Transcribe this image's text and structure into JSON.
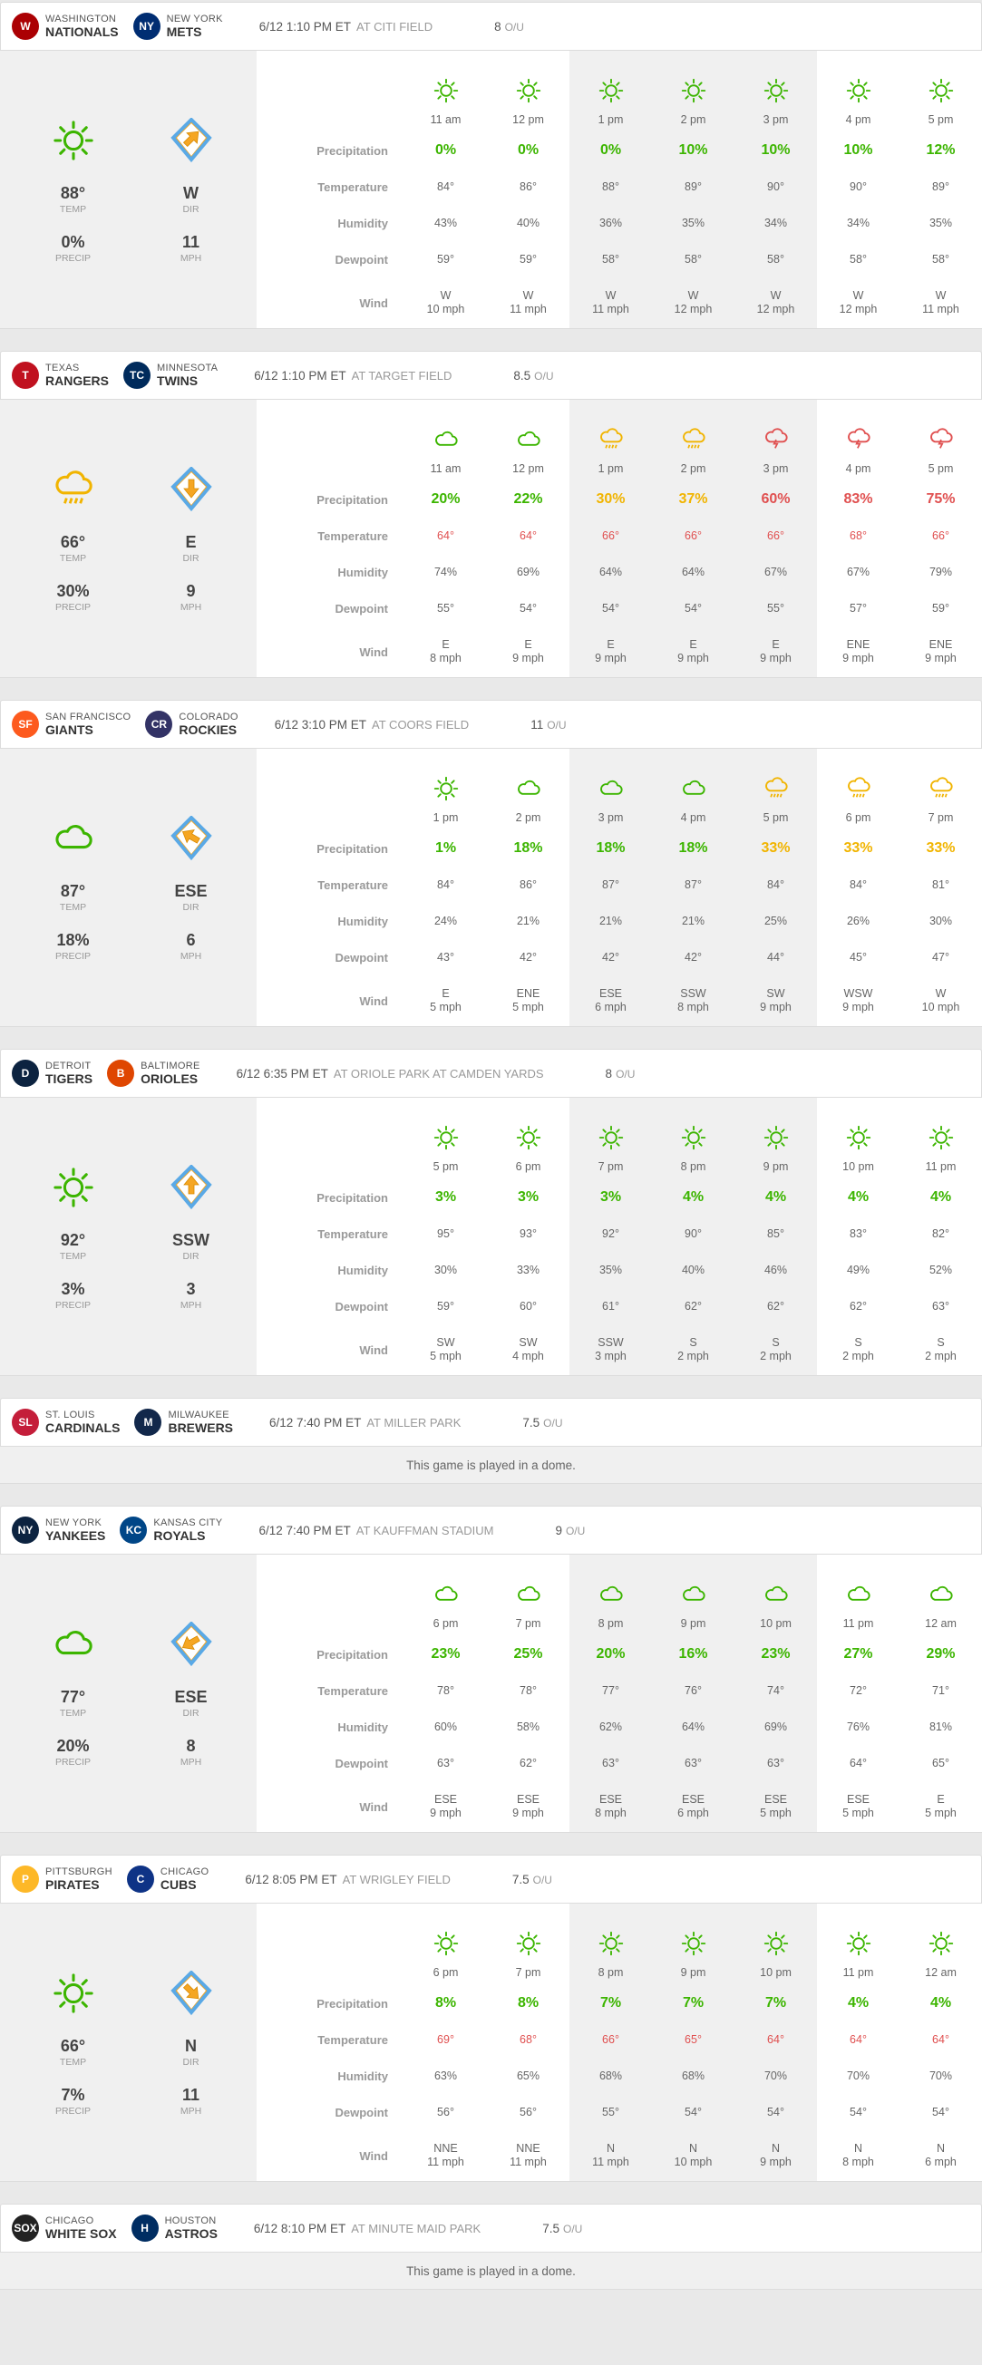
{
  "games": [
    {
      "away": {
        "city": "Washington",
        "nick": "Nationals",
        "logo": "W",
        "color": "#ab0003"
      },
      "home": {
        "city": "New York",
        "nick": "Mets",
        "logo": "NY",
        "color": "#002d72"
      },
      "time": "6/12 1:10 PM ET",
      "venue": "AT CITI FIELD",
      "ou": "8",
      "ou_label": "O/U",
      "summary": {
        "icon": "sun",
        "temp": "88°",
        "precip": "0%",
        "dir": "W",
        "mph": "11",
        "arrow_rot": 45
      },
      "labels": {
        "temp": "TEMP",
        "precip": "PRECIP",
        "dir": "DIR",
        "mph": "MPH"
      },
      "hours": [
        {
          "icon": "sun",
          "time": "11 am",
          "precip": "0%",
          "pc": "g",
          "temp": "84°",
          "tc": "",
          "hum": "43%",
          "dew": "59°",
          "wdir": "W",
          "wspd": "10 mph",
          "shade": false
        },
        {
          "icon": "sun",
          "time": "12 pm",
          "precip": "0%",
          "pc": "g",
          "temp": "86°",
          "tc": "",
          "hum": "40%",
          "dew": "59°",
          "wdir": "W",
          "wspd": "11 mph",
          "shade": false
        },
        {
          "icon": "sun",
          "time": "1 pm",
          "precip": "0%",
          "pc": "g",
          "temp": "88°",
          "tc": "",
          "hum": "36%",
          "dew": "58°",
          "wdir": "W",
          "wspd": "11 mph",
          "shade": true
        },
        {
          "icon": "sun",
          "time": "2 pm",
          "precip": "10%",
          "pc": "g",
          "temp": "89°",
          "tc": "",
          "hum": "35%",
          "dew": "58°",
          "wdir": "W",
          "wspd": "12 mph",
          "shade": true
        },
        {
          "icon": "sun",
          "time": "3 pm",
          "precip": "10%",
          "pc": "g",
          "temp": "90°",
          "tc": "",
          "hum": "34%",
          "dew": "58°",
          "wdir": "W",
          "wspd": "12 mph",
          "shade": true
        },
        {
          "icon": "sun",
          "time": "4 pm",
          "precip": "10%",
          "pc": "g",
          "temp": "90°",
          "tc": "",
          "hum": "34%",
          "dew": "58°",
          "wdir": "W",
          "wspd": "12 mph",
          "shade": false
        },
        {
          "icon": "sun",
          "time": "5 pm",
          "precip": "12%",
          "pc": "g",
          "temp": "89°",
          "tc": "",
          "hum": "35%",
          "dew": "58°",
          "wdir": "W",
          "wspd": "11 mph",
          "shade": false
        }
      ]
    },
    {
      "away": {
        "city": "Texas",
        "nick": "Rangers",
        "logo": "T",
        "color": "#c0111f"
      },
      "home": {
        "city": "Minnesota",
        "nick": "Twins",
        "logo": "TC",
        "color": "#002b5c"
      },
      "time": "6/12 1:10 PM ET",
      "venue": "AT TARGET FIELD",
      "ou": "8.5",
      "ou_label": "O/U",
      "summary": {
        "icon": "rain-y",
        "temp": "66°",
        "precip": "30%",
        "dir": "E",
        "mph": "9",
        "arrow_rot": 180
      },
      "labels": {
        "temp": "TEMP",
        "precip": "PRECIP",
        "dir": "DIR",
        "mph": "MPH"
      },
      "hours": [
        {
          "icon": "cloud",
          "time": "11 am",
          "precip": "20%",
          "pc": "g",
          "temp": "64°",
          "tc": "r",
          "hum": "74%",
          "dew": "55°",
          "wdir": "E",
          "wspd": "8 mph",
          "shade": false
        },
        {
          "icon": "cloud",
          "time": "12 pm",
          "precip": "22%",
          "pc": "g",
          "temp": "64°",
          "tc": "r",
          "hum": "69%",
          "dew": "54°",
          "wdir": "E",
          "wspd": "9 mph",
          "shade": false
        },
        {
          "icon": "rain-y",
          "time": "1 pm",
          "precip": "30%",
          "pc": "y",
          "temp": "66°",
          "tc": "r",
          "hum": "64%",
          "dew": "54°",
          "wdir": "E",
          "wspd": "9 mph",
          "shade": true
        },
        {
          "icon": "rain-y",
          "time": "2 pm",
          "precip": "37%",
          "pc": "y",
          "temp": "66°",
          "tc": "r",
          "hum": "64%",
          "dew": "54°",
          "wdir": "E",
          "wspd": "9 mph",
          "shade": true
        },
        {
          "icon": "storm",
          "time": "3 pm",
          "precip": "60%",
          "pc": "r",
          "temp": "66°",
          "tc": "r",
          "hum": "67%",
          "dew": "55°",
          "wdir": "E",
          "wspd": "9 mph",
          "shade": true
        },
        {
          "icon": "storm",
          "time": "4 pm",
          "precip": "83%",
          "pc": "r",
          "temp": "68°",
          "tc": "r",
          "hum": "67%",
          "dew": "57°",
          "wdir": "ENE",
          "wspd": "9 mph",
          "shade": false
        },
        {
          "icon": "storm",
          "time": "5 pm",
          "precip": "75%",
          "pc": "r",
          "temp": "66°",
          "tc": "r",
          "hum": "79%",
          "dew": "59°",
          "wdir": "ENE",
          "wspd": "9 mph",
          "shade": false
        }
      ]
    },
    {
      "away": {
        "city": "San Francisco",
        "nick": "Giants",
        "logo": "SF",
        "color": "#fd5a1e"
      },
      "home": {
        "city": "Colorado",
        "nick": "Rockies",
        "logo": "CR",
        "color": "#333366"
      },
      "time": "6/12 3:10 PM ET",
      "venue": "AT COORS FIELD",
      "ou": "11",
      "ou_label": "O/U",
      "summary": {
        "icon": "cloud",
        "temp": "87°",
        "precip": "18%",
        "dir": "ESE",
        "mph": "6",
        "arrow_rot": -60
      },
      "labels": {
        "temp": "TEMP",
        "precip": "PRECIP",
        "dir": "DIR",
        "mph": "MPH"
      },
      "hours": [
        {
          "icon": "sun",
          "time": "1 pm",
          "precip": "1%",
          "pc": "g",
          "temp": "84°",
          "tc": "",
          "hum": "24%",
          "dew": "43°",
          "wdir": "E",
          "wspd": "5 mph",
          "shade": false
        },
        {
          "icon": "cloud",
          "time": "2 pm",
          "precip": "18%",
          "pc": "g",
          "temp": "86°",
          "tc": "",
          "hum": "21%",
          "dew": "42°",
          "wdir": "ENE",
          "wspd": "5 mph",
          "shade": false
        },
        {
          "icon": "cloud",
          "time": "3 pm",
          "precip": "18%",
          "pc": "g",
          "temp": "87°",
          "tc": "",
          "hum": "21%",
          "dew": "42°",
          "wdir": "ESE",
          "wspd": "6 mph",
          "shade": true
        },
        {
          "icon": "cloud",
          "time": "4 pm",
          "precip": "18%",
          "pc": "g",
          "temp": "87°",
          "tc": "",
          "hum": "21%",
          "dew": "42°",
          "wdir": "SSW",
          "wspd": "8 mph",
          "shade": true
        },
        {
          "icon": "rain-y",
          "time": "5 pm",
          "precip": "33%",
          "pc": "y",
          "temp": "84°",
          "tc": "",
          "hum": "25%",
          "dew": "44°",
          "wdir": "SW",
          "wspd": "9 mph",
          "shade": true
        },
        {
          "icon": "rain-y",
          "time": "6 pm",
          "precip": "33%",
          "pc": "y",
          "temp": "84°",
          "tc": "",
          "hum": "26%",
          "dew": "45°",
          "wdir": "WSW",
          "wspd": "9 mph",
          "shade": false
        },
        {
          "icon": "rain-y",
          "time": "7 pm",
          "precip": "33%",
          "pc": "y",
          "temp": "81°",
          "tc": "",
          "hum": "30%",
          "dew": "47°",
          "wdir": "W",
          "wspd": "10 mph",
          "shade": false
        }
      ]
    },
    {
      "away": {
        "city": "Detroit",
        "nick": "Tigers",
        "logo": "D",
        "color": "#0c2340"
      },
      "home": {
        "city": "Baltimore",
        "nick": "Orioles",
        "logo": "B",
        "color": "#df4601"
      },
      "time": "6/12 6:35 PM ET",
      "venue": "AT ORIOLE PARK AT CAMDEN YARDS",
      "ou": "8",
      "ou_label": "O/U",
      "summary": {
        "icon": "sun",
        "temp": "92°",
        "precip": "3%",
        "dir": "SSW",
        "mph": "3",
        "arrow_rot": 0
      },
      "labels": {
        "temp": "TEMP",
        "precip": "PRECIP",
        "dir": "DIR",
        "mph": "MPH"
      },
      "hours": [
        {
          "icon": "sun",
          "time": "5 pm",
          "precip": "3%",
          "pc": "g",
          "temp": "95°",
          "tc": "",
          "hum": "30%",
          "dew": "59°",
          "wdir": "SW",
          "wspd": "5 mph",
          "shade": false
        },
        {
          "icon": "sun",
          "time": "6 pm",
          "precip": "3%",
          "pc": "g",
          "temp": "93°",
          "tc": "",
          "hum": "33%",
          "dew": "60°",
          "wdir": "SW",
          "wspd": "4 mph",
          "shade": false
        },
        {
          "icon": "sun",
          "time": "7 pm",
          "precip": "3%",
          "pc": "g",
          "temp": "92°",
          "tc": "",
          "hum": "35%",
          "dew": "61°",
          "wdir": "SSW",
          "wspd": "3 mph",
          "shade": true
        },
        {
          "icon": "sun",
          "time": "8 pm",
          "precip": "4%",
          "pc": "g",
          "temp": "90°",
          "tc": "",
          "hum": "40%",
          "dew": "62°",
          "wdir": "S",
          "wspd": "2 mph",
          "shade": true
        },
        {
          "icon": "sun",
          "time": "9 pm",
          "precip": "4%",
          "pc": "g",
          "temp": "85°",
          "tc": "",
          "hum": "46%",
          "dew": "62°",
          "wdir": "S",
          "wspd": "2 mph",
          "shade": true
        },
        {
          "icon": "sun",
          "time": "10 pm",
          "precip": "4%",
          "pc": "g",
          "temp": "83°",
          "tc": "",
          "hum": "49%",
          "dew": "62°",
          "wdir": "S",
          "wspd": "2 mph",
          "shade": false
        },
        {
          "icon": "sun",
          "time": "11 pm",
          "precip": "4%",
          "pc": "g",
          "temp": "82°",
          "tc": "",
          "hum": "52%",
          "dew": "63°",
          "wdir": "S",
          "wspd": "2 mph",
          "shade": false
        }
      ]
    },
    {
      "away": {
        "city": "St. Louis",
        "nick": "Cardinals",
        "logo": "SL",
        "color": "#c41e3a"
      },
      "home": {
        "city": "Milwaukee",
        "nick": "Brewers",
        "logo": "M",
        "color": "#12284b"
      },
      "time": "6/12 7:40 PM ET",
      "venue": "AT MILLER PARK",
      "ou": "7.5",
      "ou_label": "O/U",
      "dome": "This game is played in a dome."
    },
    {
      "away": {
        "city": "New York",
        "nick": "Yankees",
        "logo": "NY",
        "color": "#0c2340"
      },
      "home": {
        "city": "Kansas City",
        "nick": "Royals",
        "logo": "KC",
        "color": "#004687"
      },
      "time": "6/12 7:40 PM ET",
      "venue": "AT KAUFFMAN STADIUM",
      "ou": "9",
      "ou_label": "O/U",
      "summary": {
        "icon": "cloud",
        "temp": "77°",
        "precip": "20%",
        "dir": "ESE",
        "mph": "8",
        "arrow_rot": -120
      },
      "labels": {
        "temp": "TEMP",
        "precip": "PRECIP",
        "dir": "DIR",
        "mph": "MPH"
      },
      "hours": [
        {
          "icon": "cloud",
          "time": "6 pm",
          "precip": "23%",
          "pc": "g",
          "temp": "78°",
          "tc": "",
          "hum": "60%",
          "dew": "63°",
          "wdir": "ESE",
          "wspd": "9 mph",
          "shade": false
        },
        {
          "icon": "cloud",
          "time": "7 pm",
          "precip": "25%",
          "pc": "g",
          "temp": "78°",
          "tc": "",
          "hum": "58%",
          "dew": "62°",
          "wdir": "ESE",
          "wspd": "9 mph",
          "shade": false
        },
        {
          "icon": "cloud",
          "time": "8 pm",
          "precip": "20%",
          "pc": "g",
          "temp": "77°",
          "tc": "",
          "hum": "62%",
          "dew": "63°",
          "wdir": "ESE",
          "wspd": "8 mph",
          "shade": true
        },
        {
          "icon": "cloud",
          "time": "9 pm",
          "precip": "16%",
          "pc": "g",
          "temp": "76°",
          "tc": "",
          "hum": "64%",
          "dew": "63°",
          "wdir": "ESE",
          "wspd": "6 mph",
          "shade": true
        },
        {
          "icon": "cloud",
          "time": "10 pm",
          "precip": "23%",
          "pc": "g",
          "temp": "74°",
          "tc": "",
          "hum": "69%",
          "dew": "63°",
          "wdir": "ESE",
          "wspd": "5 mph",
          "shade": true
        },
        {
          "icon": "cloud",
          "time": "11 pm",
          "precip": "27%",
          "pc": "g",
          "temp": "72°",
          "tc": "",
          "hum": "76%",
          "dew": "64°",
          "wdir": "ESE",
          "wspd": "5 mph",
          "shade": false
        },
        {
          "icon": "cloud",
          "time": "12 am",
          "precip": "29%",
          "pc": "g",
          "temp": "71°",
          "tc": "",
          "hum": "81%",
          "dew": "65°",
          "wdir": "E",
          "wspd": "5 mph",
          "shade": false
        }
      ]
    },
    {
      "away": {
        "city": "Pittsburgh",
        "nick": "Pirates",
        "logo": "P",
        "color": "#fdb827"
      },
      "home": {
        "city": "Chicago",
        "nick": "Cubs",
        "logo": "C",
        "color": "#0e3386"
      },
      "time": "6/12 8:05 PM ET",
      "venue": "AT WRIGLEY FIELD",
      "ou": "7.5",
      "ou_label": "O/U",
      "summary": {
        "icon": "sun",
        "temp": "66°",
        "precip": "7%",
        "dir": "N",
        "mph": "11",
        "arrow_rot": 135
      },
      "labels": {
        "temp": "TEMP",
        "precip": "PRECIP",
        "dir": "DIR",
        "mph": "MPH"
      },
      "hours": [
        {
          "icon": "sun",
          "time": "6 pm",
          "precip": "8%",
          "pc": "g",
          "temp": "69°",
          "tc": "r",
          "hum": "63%",
          "dew": "56°",
          "wdir": "NNE",
          "wspd": "11 mph",
          "shade": false
        },
        {
          "icon": "sun",
          "time": "7 pm",
          "precip": "8%",
          "pc": "g",
          "temp": "68°",
          "tc": "r",
          "hum": "65%",
          "dew": "56°",
          "wdir": "NNE",
          "wspd": "11 mph",
          "shade": false
        },
        {
          "icon": "sun",
          "time": "8 pm",
          "precip": "7%",
          "pc": "g",
          "temp": "66°",
          "tc": "r",
          "hum": "68%",
          "dew": "55°",
          "wdir": "N",
          "wspd": "11 mph",
          "shade": true
        },
        {
          "icon": "sun",
          "time": "9 pm",
          "precip": "7%",
          "pc": "g",
          "temp": "65°",
          "tc": "r",
          "hum": "68%",
          "dew": "54°",
          "wdir": "N",
          "wspd": "10 mph",
          "shade": true
        },
        {
          "icon": "sun",
          "time": "10 pm",
          "precip": "7%",
          "pc": "g",
          "temp": "64°",
          "tc": "r",
          "hum": "70%",
          "dew": "54°",
          "wdir": "N",
          "wspd": "9 mph",
          "shade": true
        },
        {
          "icon": "sun",
          "time": "11 pm",
          "precip": "4%",
          "pc": "g",
          "temp": "64°",
          "tc": "r",
          "hum": "70%",
          "dew": "54°",
          "wdir": "N",
          "wspd": "8 mph",
          "shade": false
        },
        {
          "icon": "sun",
          "time": "12 am",
          "precip": "4%",
          "pc": "g",
          "temp": "64°",
          "tc": "r",
          "hum": "70%",
          "dew": "54°",
          "wdir": "N",
          "wspd": "6 mph",
          "shade": false
        }
      ]
    },
    {
      "away": {
        "city": "Chicago",
        "nick": "White Sox",
        "logo": "SOX",
        "color": "#222222"
      },
      "home": {
        "city": "Houston",
        "nick": "Astros",
        "logo": "H",
        "color": "#002d62"
      },
      "time": "6/12 8:10 PM ET",
      "venue": "AT MINUTE MAID PARK",
      "ou": "7.5",
      "ou_label": "O/U",
      "dome": "This game is played in a dome."
    }
  ],
  "row_labels": [
    "Precipitation",
    "Temperature",
    "Humidity",
    "Dewpoint",
    "Wind"
  ]
}
